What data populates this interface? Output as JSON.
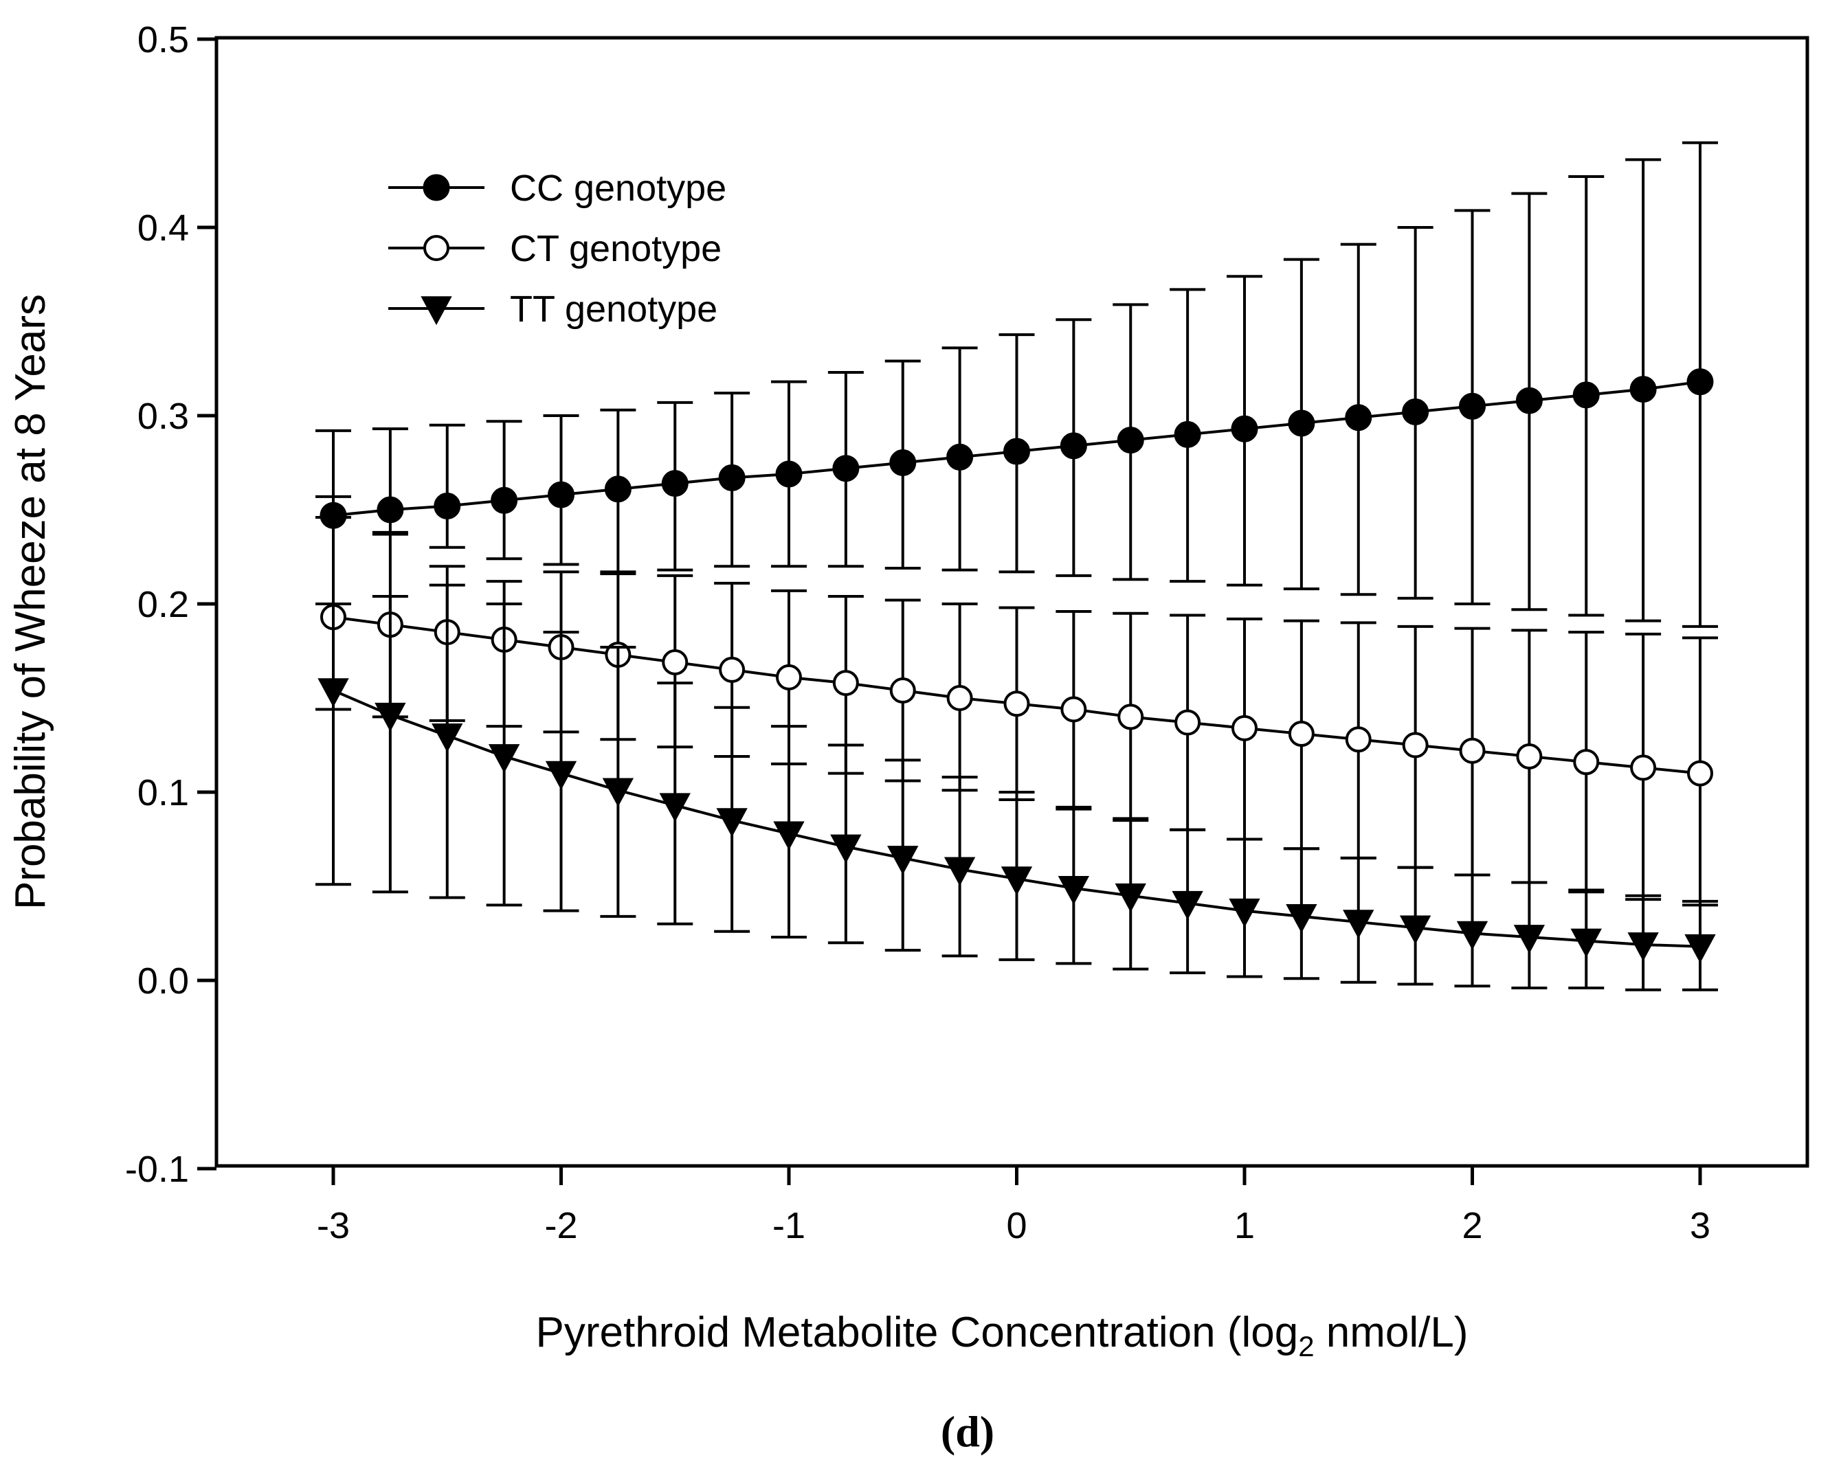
{
  "chart_data": {
    "type": "line",
    "xlabel": {
      "main": "Pyrethroid Metabolite Concentration (log",
      "sub": "2",
      "tail": " nmol/L)"
    },
    "ylabel": "Probability of Wheeze at 8 Years",
    "panel_label": "(d)",
    "xlim": [
      -3.5,
      3.5
    ],
    "ylim": [
      -0.1,
      0.5
    ],
    "xticks": [
      -3,
      -2,
      -1,
      0,
      1,
      2,
      3
    ],
    "xtick_labels": [
      "-3",
      "-2",
      "-1",
      "0",
      "1",
      "2",
      "3"
    ],
    "yticks": [
      -0.1,
      0.0,
      0.1,
      0.2,
      0.3,
      0.4,
      0.5
    ],
    "ytick_labels": [
      "-0.1",
      "0.0",
      "0.1",
      "0.2",
      "0.3",
      "0.4",
      "0.5"
    ],
    "grid": false,
    "legend_position": "top-left",
    "x": [
      -3,
      -2.75,
      -2.5,
      -2.25,
      -2,
      -1.75,
      -1.5,
      -1.25,
      -1,
      -0.75,
      -0.5,
      -0.25,
      0,
      0.25,
      0.5,
      0.75,
      1,
      1.25,
      1.5,
      1.75,
      2,
      2.25,
      2.5,
      2.75,
      3
    ],
    "series": [
      {
        "name": "CC genotype",
        "marker": "filled-circle",
        "values": [
          0.247,
          0.25,
          0.252,
          0.255,
          0.258,
          0.261,
          0.264,
          0.267,
          0.269,
          0.272,
          0.275,
          0.278,
          0.281,
          0.284,
          0.287,
          0.29,
          0.293,
          0.296,
          0.299,
          0.302,
          0.305,
          0.308,
          0.311,
          0.314,
          0.318
        ],
        "upper": [
          0.292,
          0.293,
          0.295,
          0.297,
          0.3,
          0.303,
          0.307,
          0.312,
          0.318,
          0.323,
          0.329,
          0.336,
          0.343,
          0.351,
          0.359,
          0.367,
          0.374,
          0.383,
          0.391,
          0.4,
          0.409,
          0.418,
          0.427,
          0.436,
          0.445
        ],
        "lower": [
          0.246,
          0.238,
          0.23,
          0.224,
          0.221,
          0.217,
          0.218,
          0.22,
          0.22,
          0.22,
          0.219,
          0.218,
          0.217,
          0.215,
          0.213,
          0.212,
          0.21,
          0.208,
          0.205,
          0.203,
          0.2,
          0.197,
          0.194,
          0.191,
          0.188
        ]
      },
      {
        "name": "CT genotype",
        "marker": "open-circle",
        "values": [
          0.193,
          0.189,
          0.185,
          0.181,
          0.177,
          0.173,
          0.169,
          0.165,
          0.161,
          0.158,
          0.154,
          0.15,
          0.147,
          0.144,
          0.14,
          0.137,
          0.134,
          0.131,
          0.128,
          0.125,
          0.122,
          0.119,
          0.116,
          0.113,
          0.11
        ],
        "upper": [
          0.257,
          0.237,
          0.22,
          0.212,
          0.217,
          0.216,
          0.215,
          0.211,
          0.207,
          0.204,
          0.202,
          0.2,
          0.198,
          0.196,
          0.195,
          0.194,
          0.192,
          0.191,
          0.19,
          0.188,
          0.187,
          0.186,
          0.185,
          0.184,
          0.182
        ],
        "lower": [
          0.144,
          0.14,
          0.138,
          0.135,
          0.132,
          0.128,
          0.124,
          0.119,
          0.115,
          0.11,
          0.106,
          0.101,
          0.096,
          0.091,
          0.086,
          0.08,
          0.075,
          0.07,
          0.065,
          0.06,
          0.056,
          0.052,
          0.047,
          0.043,
          0.04
        ]
      },
      {
        "name": "TT genotype",
        "marker": "filled-triangle-down",
        "values": [
          0.154,
          0.141,
          0.13,
          0.119,
          0.11,
          0.101,
          0.093,
          0.085,
          0.078,
          0.071,
          0.065,
          0.059,
          0.054,
          0.049,
          0.045,
          0.041,
          0.037,
          0.034,
          0.031,
          0.028,
          0.025,
          0.023,
          0.021,
          0.019,
          0.018
        ],
        "upper": [
          0.2,
          0.204,
          0.21,
          0.2,
          0.185,
          0.177,
          0.158,
          0.145,
          0.135,
          0.125,
          0.117,
          0.108,
          0.1,
          0.092,
          0.085,
          0.08,
          0.075,
          0.07,
          0.065,
          0.06,
          0.056,
          0.052,
          0.048,
          0.045,
          0.042
        ],
        "lower": [
          0.051,
          0.047,
          0.044,
          0.04,
          0.037,
          0.034,
          0.03,
          0.026,
          0.023,
          0.02,
          0.016,
          0.013,
          0.011,
          0.009,
          0.006,
          0.004,
          0.002,
          0.001,
          -0.001,
          -0.002,
          -0.003,
          -0.004,
          -0.004,
          -0.005,
          -0.005
        ]
      }
    ]
  }
}
